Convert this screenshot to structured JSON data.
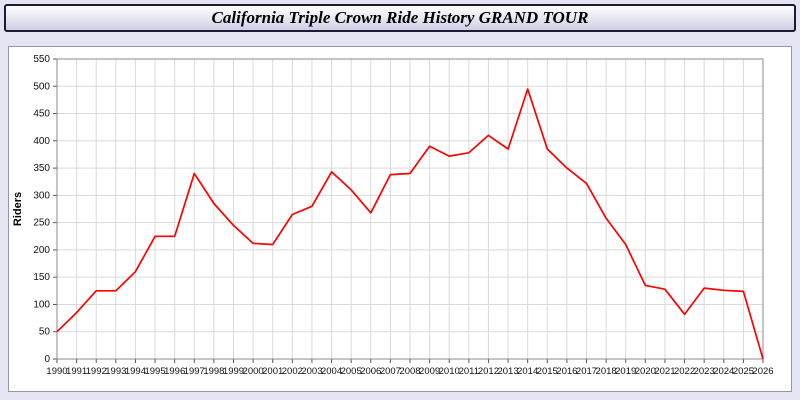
{
  "header": {
    "title": "California Triple Crown Ride History GRAND TOUR"
  },
  "chart_data": {
    "type": "line",
    "title": "California Triple Crown Ride History GRAND TOUR",
    "xlabel": "",
    "ylabel": "Riders",
    "ylim": [
      0,
      550
    ],
    "ytick_step": 50,
    "grid": true,
    "legend_position": "none",
    "line_color": "#ff0000",
    "grid_color": "#d9d9d9",
    "plot_bg": "#ffffff",
    "page_bg": "#e4e4f3",
    "x": [
      1990,
      1991,
      1992,
      1993,
      1994,
      1995,
      1996,
      1997,
      1998,
      1999,
      2000,
      2001,
      2002,
      2003,
      2004,
      2005,
      2006,
      2007,
      2008,
      2009,
      2010,
      2011,
      2012,
      2013,
      2014,
      2015,
      2016,
      2017,
      2018,
      2019,
      2020,
      2021,
      2022,
      2023,
      2024,
      2025,
      2026
    ],
    "values": [
      50,
      85,
      125,
      125,
      160,
      225,
      225,
      340,
      285,
      245,
      212,
      210,
      265,
      280,
      343,
      310,
      268,
      338,
      340,
      390,
      372,
      378,
      410,
      385,
      495,
      385,
      350,
      322,
      258,
      210,
      135,
      128,
      82,
      130,
      126,
      124,
      0
    ]
  }
}
